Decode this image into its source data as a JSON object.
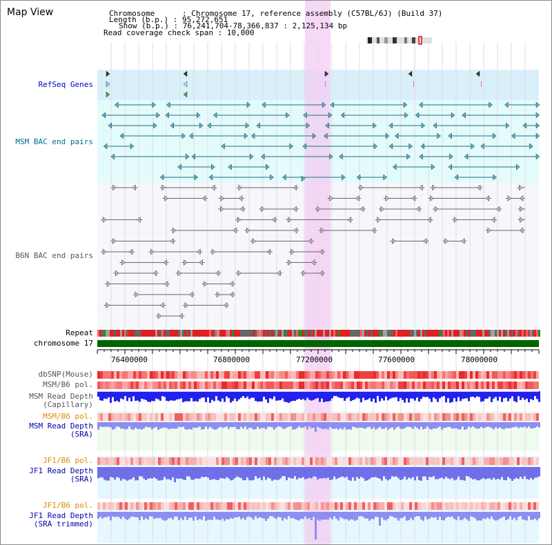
{
  "title": "Map View",
  "header": {
    "lines": [
      "Chromosome      : Chromosome 17, reference assembly (C57BL/6J) (Build 37)",
      "Length (b.p.) : 95,272,651",
      "Show (b.p.) : 76,241,704-78,366,837 : 2,125,134 bp",
      "Read coverage check span : 10,000"
    ]
  },
  "tracks": {
    "refseq": "RefSeq Genes",
    "msm_bac": "MSM BAC end pairs",
    "b6n_bac": "B6N BAC end pairs",
    "repeat": "Repeat",
    "chromosome": "chromosome 17",
    "dbsnp": "dbSNP(Mouse)",
    "msm_b6_pol": "MSM/B6 pol.",
    "msm_read_depth_cap": "MSM Read Depth",
    "msm_read_depth_cap_sub": "(Capillary)",
    "msm_b6_pol2": "MSM/B6 pol.",
    "msm_read_depth_sra": "MSM Read Depth",
    "msm_read_depth_sra_sub": "(SRA)",
    "jf1_b6_pol": "JF1/B6 pol.",
    "jf1_read_depth_sra": "JF1 Read Depth",
    "jf1_read_depth_sra_sub": "(SRA)",
    "jf1_b6_pol2": "JF1/B6 pol.",
    "jf1_read_depth_trim": "JF1 Read Depth",
    "jf1_read_depth_trim_sub": "(SRA trimmed)"
  },
  "axis": {
    "ticks": [
      "76400000",
      "76800000",
      "77200000",
      "77600000",
      "78000000"
    ]
  },
  "colors": {
    "refseq_label": "#0000cc",
    "msm_label": "#006f8f",
    "b6n_label": "#555555",
    "pol_label": "#e08a00",
    "depth_label": "#0000aa",
    "highlight": "#f6d7f6",
    "chromosome_bar": "#006400"
  }
}
